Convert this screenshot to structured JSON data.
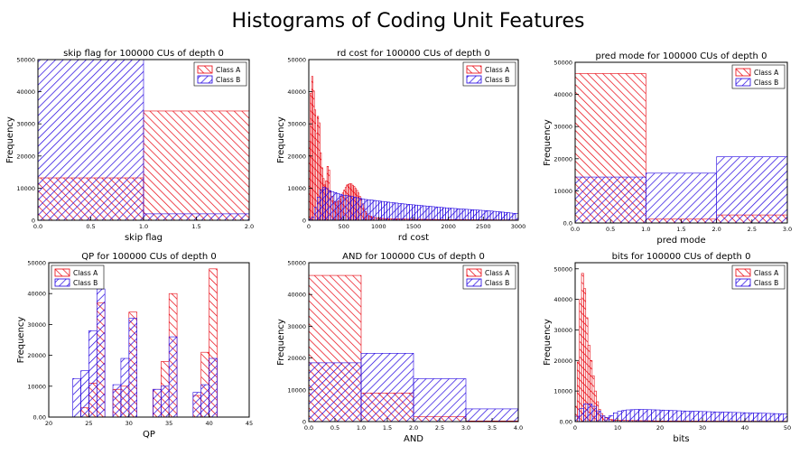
{
  "figure": {
    "title": "Histograms of Coding Unit Features"
  },
  "colors": {
    "class_a": "#e8000b",
    "class_b": "#1f00e0",
    "frame": "#000000"
  },
  "chart_data": [
    {
      "type": "bar",
      "title": "skip flag for 100000 CUs of depth 0",
      "xlabel": "skip flag",
      "ylabel": "Frequency",
      "xlim": [
        0,
        2
      ],
      "ylim": [
        0,
        50000
      ],
      "xticks": [
        "0.0",
        "0.5",
        "1.0",
        "1.5",
        "2.0"
      ],
      "xtick_values": [
        0,
        0.5,
        1,
        1.5,
        2
      ],
      "yticks": [
        "0",
        "10000",
        "20000",
        "30000",
        "40000",
        "50000"
      ],
      "ytick_values": [
        0,
        10000,
        20000,
        30000,
        40000,
        50000
      ],
      "legend_position": "top-right",
      "series": [
        {
          "name": "Class A",
          "bins": [
            [
              0,
              1,
              13200
            ],
            [
              1,
              2,
              34000
            ]
          ]
        },
        {
          "name": "Class B",
          "bins": [
            [
              0,
              1,
              50000
            ],
            [
              1,
              2,
              2000
            ]
          ]
        }
      ]
    },
    {
      "type": "bar",
      "title": "rd cost for 100000 CUs of depth 0",
      "xlabel": "rd cost",
      "ylabel": "Frequency",
      "xlim": [
        0,
        3000
      ],
      "ylim": [
        0,
        50000
      ],
      "xticks": [
        "0",
        "500",
        "1000",
        "1500",
        "2000",
        "2500",
        "3000"
      ],
      "xtick_values": [
        0,
        500,
        1000,
        1500,
        2000,
        2500,
        3000
      ],
      "yticks": [
        "0",
        "10000",
        "20000",
        "30000",
        "40000",
        "50000"
      ],
      "ytick_values": [
        0,
        10000,
        20000,
        30000,
        40000,
        50000
      ],
      "legend_position": "top-right",
      "series": [
        {
          "name": "Class A",
          "curve": [
            [
              0,
              17000
            ],
            [
              40,
              47000
            ],
            [
              80,
              38000
            ],
            [
              110,
              27000
            ],
            [
              140,
              35000
            ],
            [
              170,
              21000
            ],
            [
              200,
              14000
            ],
            [
              240,
              10000
            ],
            [
              280,
              19000
            ],
            [
              310,
              9000
            ],
            [
              350,
              6000
            ],
            [
              400,
              5500
            ],
            [
              450,
              6500
            ],
            [
              500,
              9000
            ],
            [
              550,
              11000
            ],
            [
              600,
              11500
            ],
            [
              650,
              10500
            ],
            [
              700,
              9000
            ],
            [
              750,
              6500
            ],
            [
              800,
              3000
            ],
            [
              850,
              1500
            ],
            [
              950,
              800
            ],
            [
              1100,
              500
            ],
            [
              1500,
              300
            ],
            [
              2000,
              200
            ],
            [
              3000,
              100
            ]
          ],
          "bin_width": 20
        },
        {
          "name": "Class B",
          "curve": [
            [
              0,
              0
            ],
            [
              60,
              1000
            ],
            [
              100,
              4000
            ],
            [
              150,
              8000
            ],
            [
              200,
              10500
            ],
            [
              250,
              10000
            ],
            [
              300,
              9200
            ],
            [
              400,
              8500
            ],
            [
              500,
              7800
            ],
            [
              600,
              7500
            ],
            [
              700,
              7000
            ],
            [
              800,
              6500
            ],
            [
              900,
              6300
            ],
            [
              1000,
              6000
            ],
            [
              1200,
              5500
            ],
            [
              1400,
              5000
            ],
            [
              1600,
              4600
            ],
            [
              1800,
              4200
            ],
            [
              2000,
              3800
            ],
            [
              2200,
              3500
            ],
            [
              2400,
              3200
            ],
            [
              2600,
              2900
            ],
            [
              2800,
              2500
            ],
            [
              3000,
              2000
            ]
          ],
          "bin_width": 40
        }
      ]
    },
    {
      "type": "bar",
      "title": "pred mode for 100000 CUs of depth 0",
      "xlabel": "pred mode",
      "ylabel": "Frequency",
      "xlim": [
        0,
        3
      ],
      "ylim": [
        0,
        50000
      ],
      "xticks": [
        "0.0",
        "0.5",
        "1.0",
        "1.5",
        "2.0",
        "2.5",
        "3.0"
      ],
      "xtick_values": [
        0,
        0.5,
        1,
        1.5,
        2,
        2.5,
        3
      ],
      "yticks": [
        "0.0",
        "10000",
        "20000",
        "30000",
        "40000",
        "50000"
      ],
      "ytick_values": [
        0,
        10000,
        20000,
        30000,
        40000,
        50000
      ],
      "legend_position": "top-right",
      "series": [
        {
          "name": "Class A",
          "bins": [
            [
              0,
              1,
              46500
            ],
            [
              1,
              2,
              1200
            ],
            [
              2,
              3,
              2500
            ]
          ]
        },
        {
          "name": "Class B",
          "bins": [
            [
              0,
              1,
              14300
            ],
            [
              1,
              2,
              15500
            ],
            [
              2,
              3,
              20600
            ]
          ]
        }
      ]
    },
    {
      "type": "bar",
      "title": "QP for 100000 CUs of depth 0",
      "xlabel": "QP",
      "ylabel": "Frequency",
      "xlim": [
        20,
        45
      ],
      "ylim": [
        0,
        50000
      ],
      "xticks": [
        "20",
        "25",
        "30",
        "35",
        "40",
        "45"
      ],
      "xtick_values": [
        20,
        25,
        30,
        35,
        40,
        45
      ],
      "yticks": [
        "0.00",
        "10000",
        "20000",
        "30000",
        "40000",
        "50000"
      ],
      "ytick_values": [
        0,
        10000,
        20000,
        30000,
        40000,
        50000
      ],
      "legend_position": "top-left",
      "series": [
        {
          "name": "Class A",
          "bins": [
            [
              24,
              25,
              3000
            ],
            [
              25,
              26,
              11000
            ],
            [
              26,
              27,
              37000
            ],
            [
              28,
              29,
              9000
            ],
            [
              29,
              30,
              10000
            ],
            [
              30,
              31,
              34000
            ],
            [
              33,
              34,
              9000
            ],
            [
              34,
              35,
              18000
            ],
            [
              35,
              36,
              40000
            ],
            [
              38,
              39,
              7000
            ],
            [
              39,
              40,
              21000
            ],
            [
              40,
              41,
              48000
            ]
          ]
        },
        {
          "name": "Class B",
          "bins": [
            [
              23,
              24,
              12500
            ],
            [
              24,
              25,
              15000
            ],
            [
              25,
              26,
              28000
            ],
            [
              26,
              27,
              41500
            ],
            [
              28,
              29,
              10500
            ],
            [
              29,
              30,
              19000
            ],
            [
              30,
              31,
              32000
            ],
            [
              33,
              34,
              9000
            ],
            [
              34,
              35,
              10000
            ],
            [
              35,
              36,
              26000
            ],
            [
              38,
              39,
              8000
            ],
            [
              39,
              40,
              10500
            ],
            [
              40,
              41,
              19000
            ]
          ]
        }
      ]
    },
    {
      "type": "bar",
      "title": "AND for 100000 CUs of depth 0",
      "xlabel": "AND",
      "ylabel": "Frequency",
      "xlim": [
        0,
        4
      ],
      "ylim": [
        0,
        50000
      ],
      "xticks": [
        "0.0",
        "0.5",
        "1.0",
        "1.5",
        "2.0",
        "2.5",
        "3.0",
        "3.5",
        "4.0"
      ],
      "xtick_values": [
        0,
        0.5,
        1,
        1.5,
        2,
        2.5,
        3,
        3.5,
        4
      ],
      "yticks": [
        "0",
        "10000",
        "20000",
        "30000",
        "40000",
        "50000"
      ],
      "ytick_values": [
        0,
        10000,
        20000,
        30000,
        40000,
        50000
      ],
      "legend_position": "top-right",
      "series": [
        {
          "name": "Class A",
          "bins": [
            [
              0,
              1,
              46000
            ],
            [
              1,
              2,
              9000
            ],
            [
              2,
              3,
              1500
            ],
            [
              3,
              4,
              200
            ]
          ]
        },
        {
          "name": "Class B",
          "bins": [
            [
              0,
              1,
              18500
            ],
            [
              1,
              2,
              21500
            ],
            [
              2,
              3,
              13500
            ],
            [
              3,
              4,
              4000
            ]
          ]
        }
      ]
    },
    {
      "type": "bar",
      "title": "bits for 100000 CUs of depth 0",
      "xlabel": "bits",
      "ylabel": "Frequency",
      "xlim": [
        0,
        50
      ],
      "ylim": [
        0,
        52000
      ],
      "xticks": [
        "0",
        "10",
        "20",
        "30",
        "40",
        "50"
      ],
      "xtick_values": [
        0,
        10,
        20,
        30,
        40,
        50
      ],
      "yticks": [
        "0.00",
        "10000",
        "20000",
        "30000",
        "40000",
        "50000"
      ],
      "ytick_values": [
        0,
        10000,
        20000,
        30000,
        40000,
        50000
      ],
      "legend_position": "top-right",
      "series": [
        {
          "name": "Class A",
          "curve": [
            [
              0,
              1000
            ],
            [
              0.5,
              9000
            ],
            [
              1,
              30000
            ],
            [
              1.5,
              50000
            ],
            [
              2,
              47000
            ],
            [
              2.5,
              40000
            ],
            [
              3,
              28000
            ],
            [
              3.5,
              22000
            ],
            [
              4,
              18000
            ],
            [
              4.5,
              12000
            ],
            [
              5,
              8000
            ],
            [
              5.5,
              5000
            ],
            [
              6,
              3000
            ],
            [
              7,
              1500
            ],
            [
              8,
              800
            ],
            [
              10,
              400
            ],
            [
              20,
              200
            ],
            [
              50,
              100
            ]
          ],
          "bin_width": 0.5
        },
        {
          "name": "Class B",
          "curve": [
            [
              0,
              500
            ],
            [
              1,
              3000
            ],
            [
              2,
              5500
            ],
            [
              3,
              6000
            ],
            [
              4,
              5500
            ],
            [
              5,
              4500
            ],
            [
              6,
              2500
            ],
            [
              7,
              1200
            ],
            [
              8,
              1500
            ],
            [
              9,
              2500
            ],
            [
              10,
              3200
            ],
            [
              12,
              3800
            ],
            [
              15,
              4000
            ],
            [
              20,
              3800
            ],
            [
              25,
              3500
            ],
            [
              30,
              3300
            ],
            [
              35,
              3100
            ],
            [
              40,
              2900
            ],
            [
              45,
              2700
            ],
            [
              50,
              2500
            ]
          ],
          "bin_width": 1
        }
      ]
    }
  ]
}
